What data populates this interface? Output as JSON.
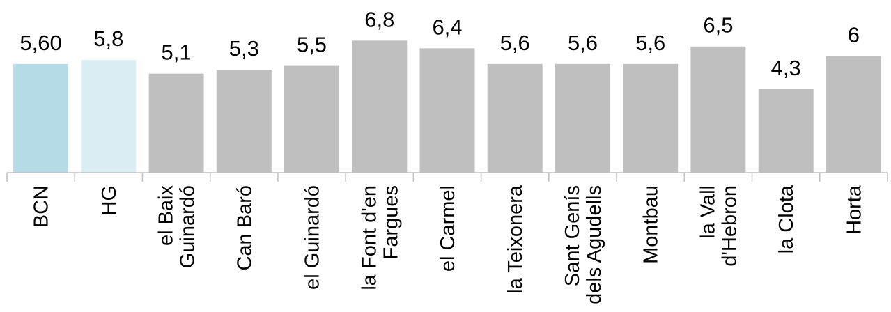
{
  "chart_data": {
    "type": "bar",
    "categories": [
      [
        "BCN"
      ],
      [
        "HG"
      ],
      [
        "el Baix",
        "Guinardó"
      ],
      [
        "Can Baró"
      ],
      [
        "el Guinardó"
      ],
      [
        "la Font d'en",
        "Fargues"
      ],
      [
        "el Carmel"
      ],
      [
        "la Teixonera"
      ],
      [
        "Sant Genís",
        "dels Agudells"
      ],
      [
        "Montbau"
      ],
      [
        "la Vall",
        "d'Hebron"
      ],
      [
        "la Clota"
      ],
      [
        "Horta"
      ]
    ],
    "values": [
      5.6,
      5.8,
      5.1,
      5.3,
      5.5,
      6.8,
      6.4,
      5.6,
      5.6,
      5.6,
      6.5,
      4.3,
      6
    ],
    "value_labels": [
      "5,60",
      "5,8",
      "5,1",
      "5,3",
      "5,5",
      "6,8",
      "6,4",
      "5,6",
      "5,6",
      "5,6",
      "6,5",
      "4,3",
      "6"
    ],
    "colors": [
      "#b5dce6",
      "#d9edf3",
      "#bfbfbf",
      "#bfbfbf",
      "#bfbfbf",
      "#bfbfbf",
      "#bfbfbf",
      "#bfbfbf",
      "#bfbfbf",
      "#bfbfbf",
      "#bfbfbf",
      "#bfbfbf",
      "#bfbfbf"
    ],
    "axis_color": "#bfbfbf",
    "ylim": [
      0,
      7
    ],
    "grid": false,
    "legend": "none"
  }
}
